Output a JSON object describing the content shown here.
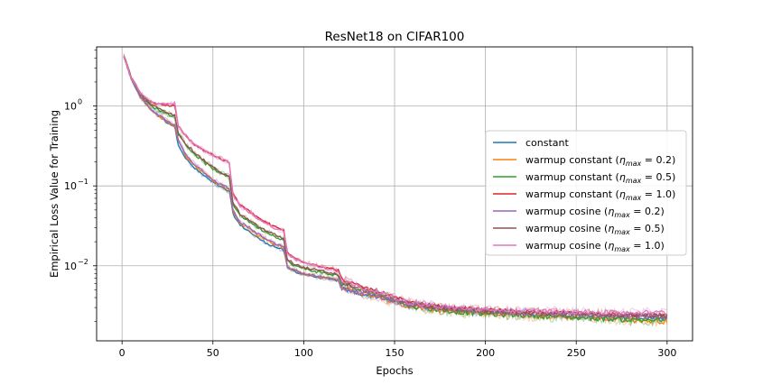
{
  "chart_data": {
    "type": "line",
    "title": "ResNet18 on CIFAR100",
    "xlabel": "Epochs",
    "ylabel": "Empirical Loss Value for Training",
    "yscale": "log",
    "xlim": [
      -14,
      314
    ],
    "ylim": [
      0.00115,
      5.5
    ],
    "grid": true,
    "legend_position": "right",
    "x_ticks": [
      0,
      50,
      100,
      150,
      200,
      250,
      300
    ],
    "x_tick_labels": [
      "0",
      "50",
      "100",
      "150",
      "200",
      "250",
      "300"
    ],
    "y_ticks": [
      0.01,
      0.1,
      1
    ],
    "y_tick_labels": [
      "10",
      "10",
      "10"
    ],
    "y_tick_exponents": [
      "−2",
      "−1",
      "0"
    ],
    "x": [
      1,
      5,
      10,
      15,
      20,
      25,
      29,
      31,
      35,
      40,
      45,
      50,
      55,
      59,
      61,
      65,
      70,
      75,
      80,
      85,
      89,
      91,
      95,
      100,
      110,
      119,
      121,
      130,
      140,
      150,
      160,
      180,
      200,
      220,
      240,
      260,
      280,
      300
    ],
    "series": [
      {
        "name": "constant",
        "legend_label": "constant",
        "color": "#1f77b4",
        "noise": 0.07,
        "values": [
          4.2,
          2.2,
          1.3,
          0.95,
          0.75,
          0.62,
          0.55,
          0.33,
          0.22,
          0.165,
          0.135,
          0.11,
          0.095,
          0.085,
          0.045,
          0.032,
          0.027,
          0.022,
          0.019,
          0.017,
          0.0155,
          0.0095,
          0.0085,
          0.0078,
          0.007,
          0.0065,
          0.0052,
          0.0045,
          0.0041,
          0.0036,
          0.0032,
          0.0029,
          0.0026,
          0.0025,
          0.0024,
          0.0023,
          0.0022,
          0.0022
        ]
      },
      {
        "name": "warmup constant 0.2",
        "legend_prefix": "warmup constant (",
        "legend_eta": "η",
        "legend_sub": "max",
        "legend_suffix": " = 0.2)",
        "color": "#ff7f0e",
        "noise": 0.09,
        "values": [
          4.2,
          2.2,
          1.3,
          0.95,
          0.76,
          0.63,
          0.56,
          0.36,
          0.24,
          0.18,
          0.145,
          0.118,
          0.1,
          0.09,
          0.048,
          0.034,
          0.029,
          0.024,
          0.021,
          0.018,
          0.017,
          0.0098,
          0.0088,
          0.008,
          0.0072,
          0.0067,
          0.0053,
          0.0046,
          0.0042,
          0.0035,
          0.003,
          0.0027,
          0.0025,
          0.0024,
          0.0023,
          0.0022,
          0.0021,
          0.002
        ]
      },
      {
        "name": "warmup constant 0.5",
        "legend_prefix": "warmup constant (",
        "legend_eta": "η",
        "legend_sub": "max",
        "legend_suffix": " = 0.5)",
        "color": "#2ca02c",
        "noise": 0.09,
        "values": [
          4.2,
          2.3,
          1.4,
          1.05,
          0.9,
          0.8,
          0.74,
          0.45,
          0.33,
          0.25,
          0.2,
          0.165,
          0.14,
          0.128,
          0.06,
          0.043,
          0.036,
          0.03,
          0.026,
          0.023,
          0.021,
          0.0115,
          0.01,
          0.0092,
          0.0082,
          0.0075,
          0.006,
          0.005,
          0.0045,
          0.0037,
          0.0031,
          0.0027,
          0.0025,
          0.0024,
          0.0023,
          0.0022,
          0.0021,
          0.0021
        ]
      },
      {
        "name": "warmup constant 1.0",
        "legend_prefix": "warmup constant (",
        "legend_eta": "η",
        "legend_sub": "max",
        "legend_suffix": " = 1.0)",
        "color": "#d62728",
        "noise": 0.07,
        "values": [
          4.2,
          2.3,
          1.45,
          1.15,
          1.05,
          1.02,
          1.0,
          0.56,
          0.42,
          0.33,
          0.28,
          0.245,
          0.215,
          0.195,
          0.08,
          0.058,
          0.048,
          0.04,
          0.034,
          0.03,
          0.028,
          0.0145,
          0.0125,
          0.0112,
          0.0098,
          0.0088,
          0.0068,
          0.0056,
          0.0049,
          0.004,
          0.0034,
          0.003,
          0.0028,
          0.0027,
          0.0026,
          0.0025,
          0.0024,
          0.0024
        ]
      },
      {
        "name": "warmup cosine 0.2",
        "legend_prefix": "warmup cosine (",
        "legend_eta": "η",
        "legend_sub": "max",
        "legend_suffix": " = 0.2)",
        "color": "#9467bd",
        "noise": 0.08,
        "values": [
          4.2,
          2.2,
          1.32,
          0.96,
          0.77,
          0.64,
          0.57,
          0.37,
          0.25,
          0.185,
          0.15,
          0.12,
          0.102,
          0.092,
          0.05,
          0.035,
          0.03,
          0.025,
          0.021,
          0.0185,
          0.0172,
          0.0098,
          0.0087,
          0.008,
          0.0072,
          0.0066,
          0.0053,
          0.0046,
          0.0042,
          0.0036,
          0.0032,
          0.0029,
          0.0027,
          0.0026,
          0.0025,
          0.0024,
          0.0024,
          0.0023
        ]
      },
      {
        "name": "warmup cosine 0.5",
        "legend_prefix": "warmup cosine (",
        "legend_eta": "η",
        "legend_sub": "max",
        "legend_suffix": " = 0.5)",
        "color": "#8c564b",
        "noise": 0.08,
        "values": [
          4.2,
          2.3,
          1.42,
          1.08,
          0.92,
          0.82,
          0.76,
          0.46,
          0.34,
          0.26,
          0.21,
          0.17,
          0.145,
          0.132,
          0.062,
          0.044,
          0.037,
          0.031,
          0.027,
          0.024,
          0.022,
          0.012,
          0.0105,
          0.0095,
          0.0085,
          0.0078,
          0.0062,
          0.0052,
          0.0046,
          0.0038,
          0.0033,
          0.0029,
          0.0027,
          0.0026,
          0.0025,
          0.0025,
          0.0024,
          0.0024
        ]
      },
      {
        "name": "warmup cosine 1.0",
        "legend_prefix": "warmup cosine (",
        "legend_eta": "η",
        "legend_sub": "max",
        "legend_suffix": " = 1.0)",
        "color": "#e377c2",
        "noise": 0.08,
        "values": [
          4.2,
          2.3,
          1.45,
          1.16,
          1.07,
          1.05,
          1.08,
          0.56,
          0.42,
          0.33,
          0.28,
          0.245,
          0.215,
          0.195,
          0.078,
          0.056,
          0.047,
          0.039,
          0.033,
          0.029,
          0.027,
          0.014,
          0.0122,
          0.011,
          0.0095,
          0.0086,
          0.0066,
          0.0055,
          0.0048,
          0.0039,
          0.0034,
          0.003,
          0.0028,
          0.0027,
          0.0027,
          0.0026,
          0.0026,
          0.0026
        ]
      }
    ]
  }
}
